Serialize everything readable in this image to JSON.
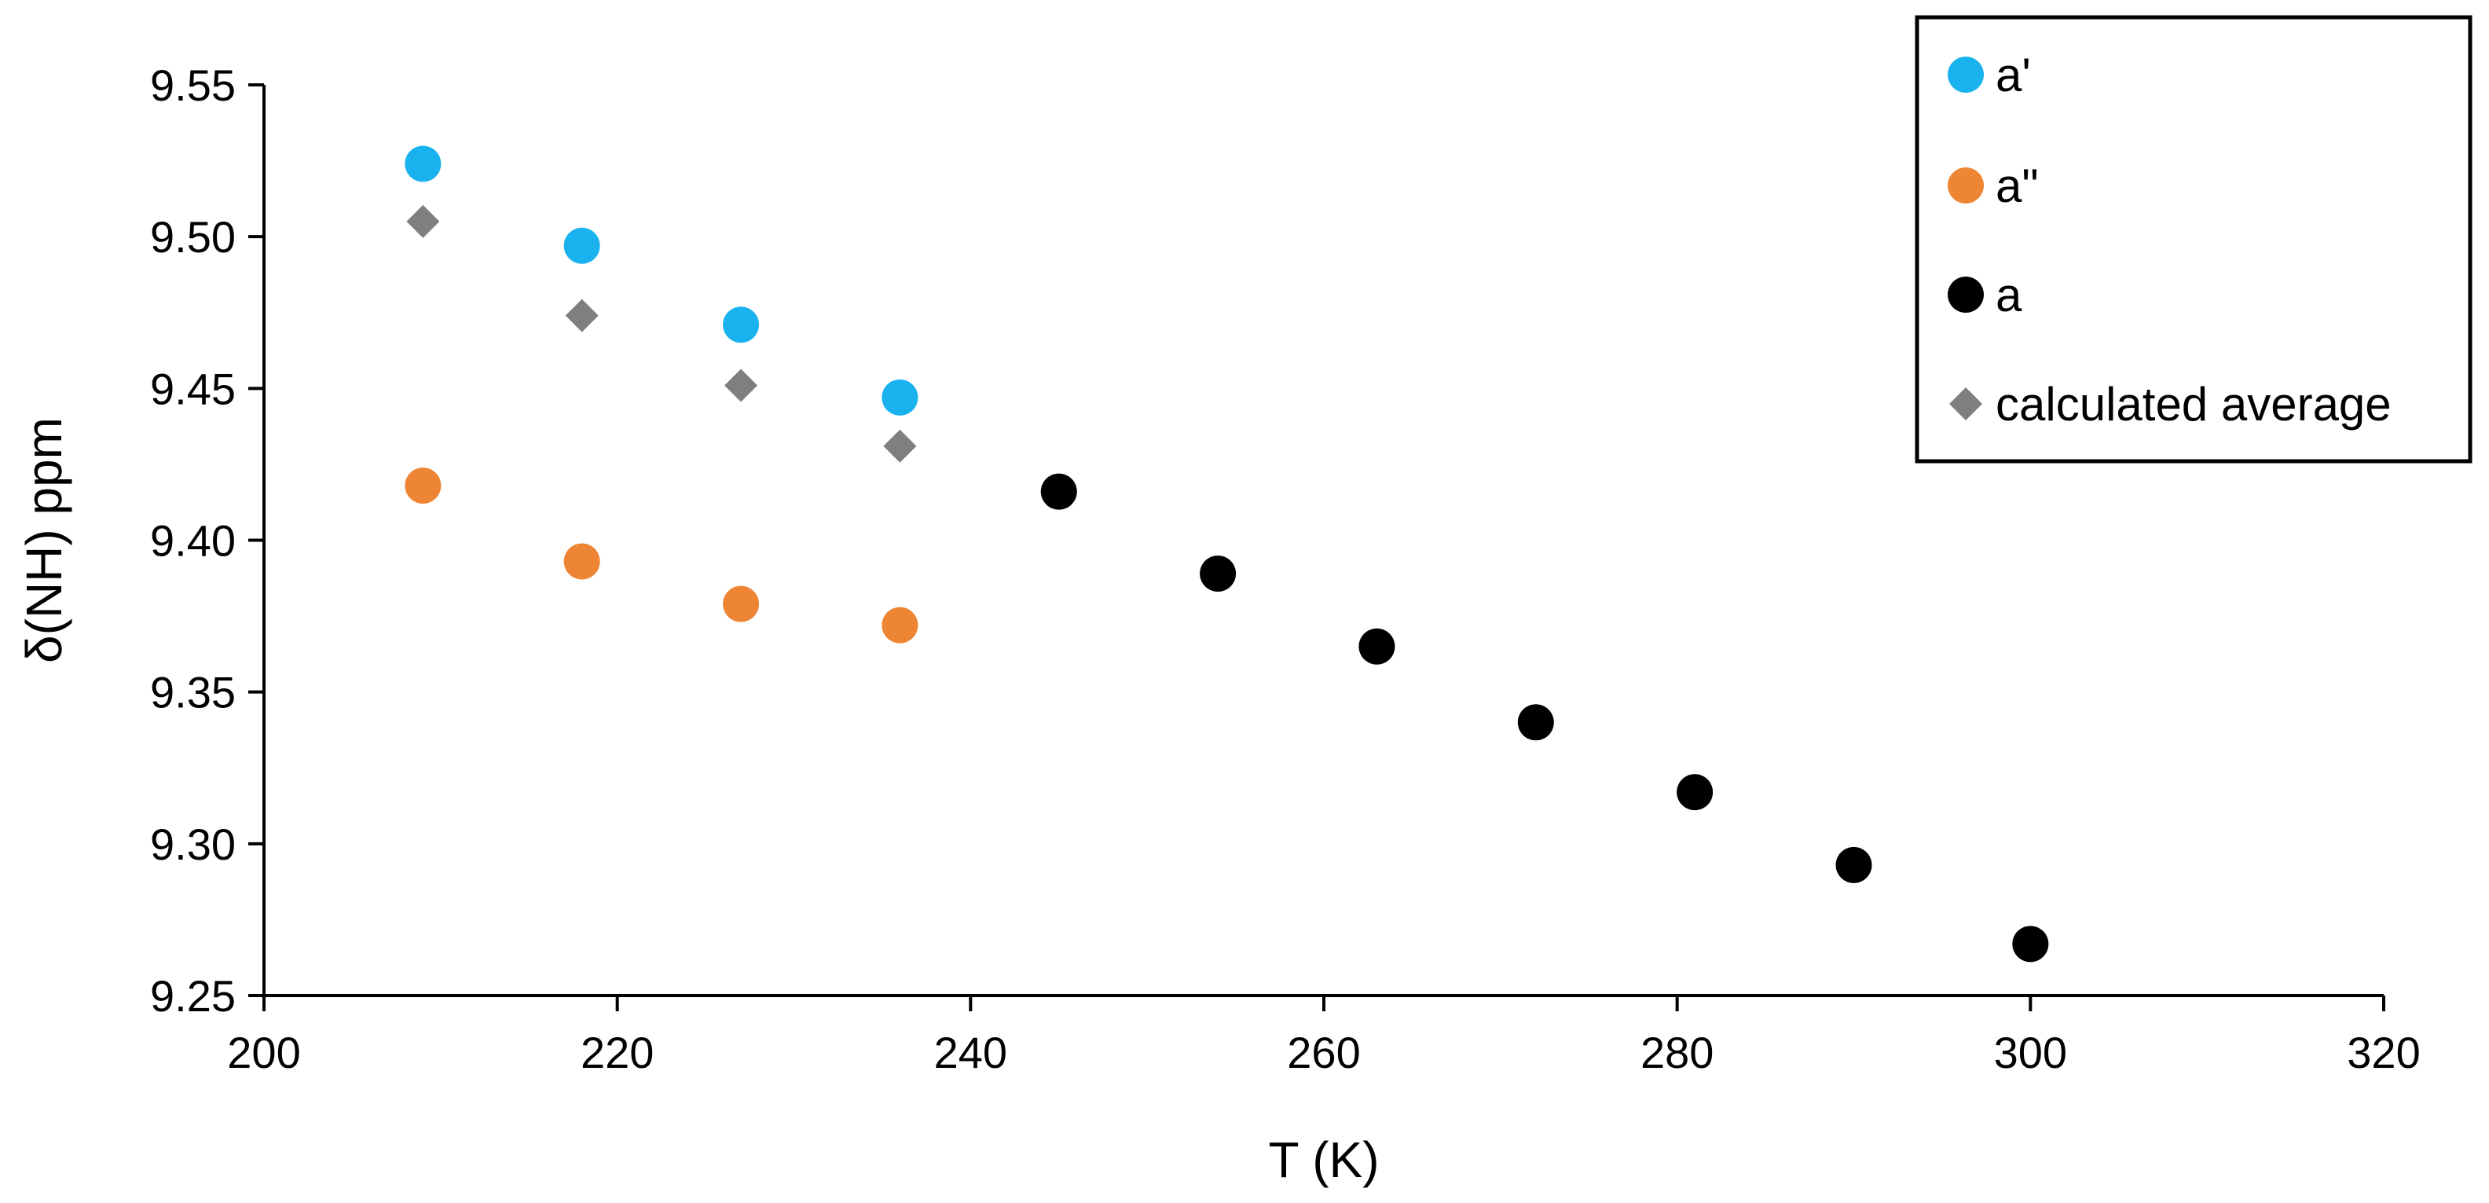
{
  "chart_data": {
    "type": "scatter",
    "xlabel": "T (K)",
    "ylabel": "δ(NH) ppm",
    "xlim": [
      200,
      320
    ],
    "ylim": [
      9.25,
      9.55
    ],
    "xticks": [
      "200",
      "220",
      "240",
      "260",
      "280",
      "300",
      "320"
    ],
    "yticks": [
      "9.25",
      "9.30",
      "9.35",
      "9.40",
      "9.45",
      "9.50",
      "9.55"
    ],
    "grid": false,
    "legend_position": "top-right",
    "series": [
      {
        "name": "a'",
        "marker": "circle",
        "color": "#1AB2EE",
        "points": [
          [
            209,
            9.524
          ],
          [
            218,
            9.497
          ],
          [
            227,
            9.471
          ],
          [
            236,
            9.447
          ]
        ]
      },
      {
        "name": "a\"",
        "marker": "circle",
        "color": "#EE8534",
        "points": [
          [
            209,
            9.418
          ],
          [
            218,
            9.393
          ],
          [
            227,
            9.379
          ],
          [
            236,
            9.372
          ]
        ]
      },
      {
        "name": "a",
        "marker": "circle",
        "color": "#000000",
        "points": [
          [
            245,
            9.416
          ],
          [
            254,
            9.389
          ],
          [
            263,
            9.365
          ],
          [
            272,
            9.34
          ],
          [
            281,
            9.317
          ],
          [
            290,
            9.293
          ],
          [
            300,
            9.267
          ]
        ]
      },
      {
        "name": "calculated average",
        "marker": "diamond",
        "color": "#7F7F7F",
        "points": [
          [
            209,
            9.505
          ],
          [
            218,
            9.474
          ],
          [
            227,
            9.451
          ],
          [
            236,
            9.431
          ]
        ]
      }
    ]
  }
}
